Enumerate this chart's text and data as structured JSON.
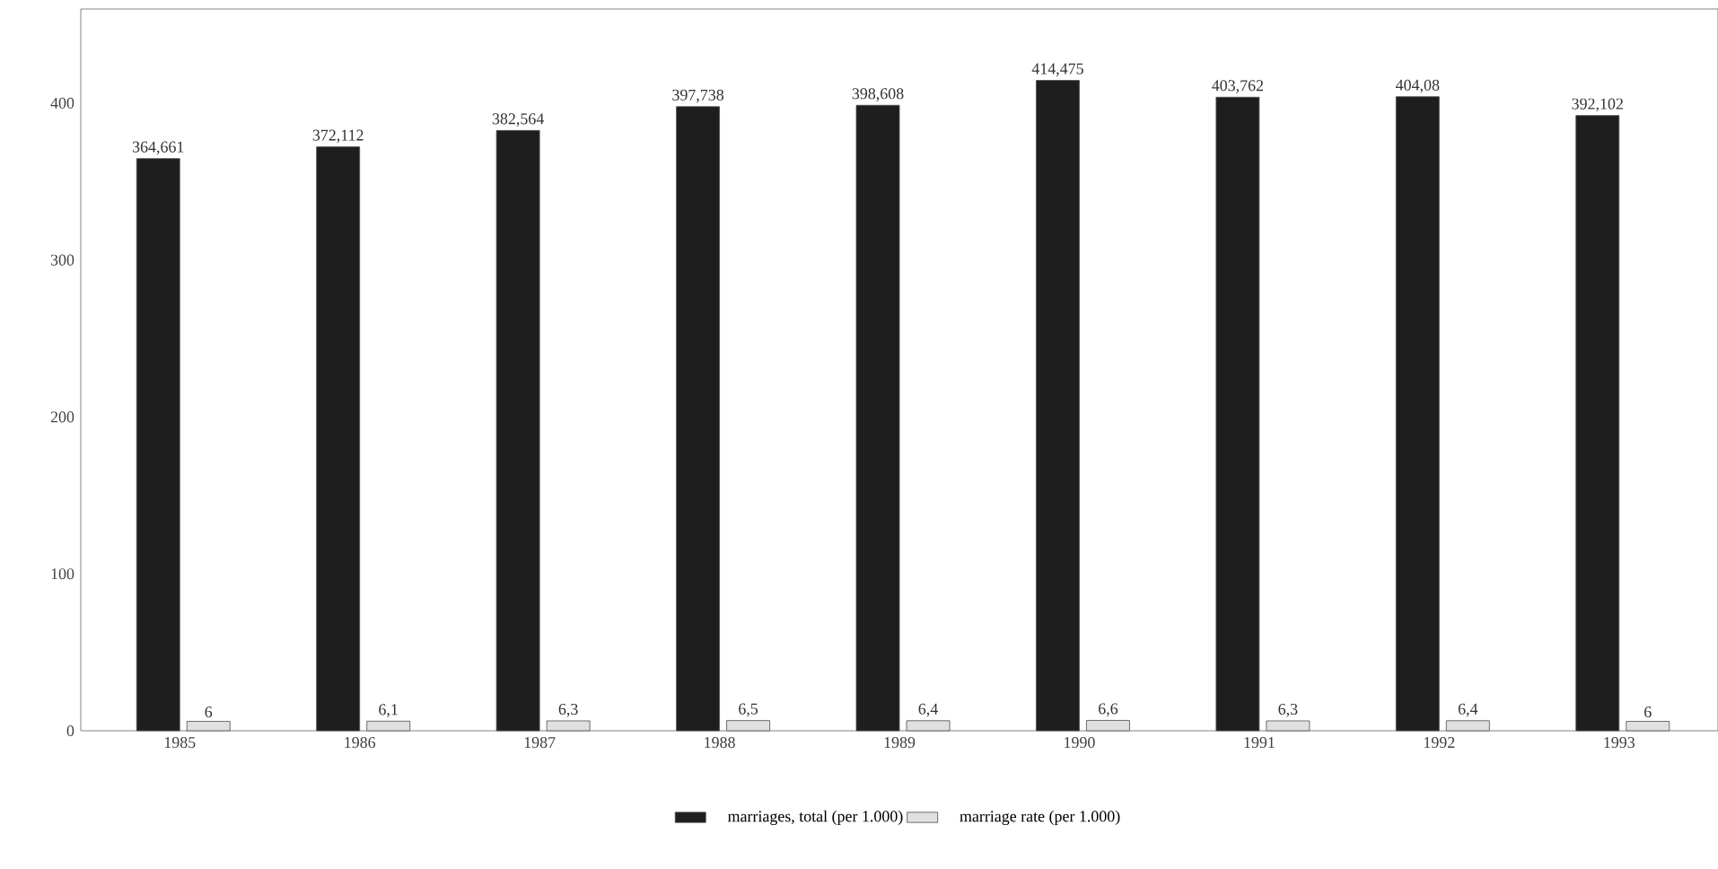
{
  "chart_data": {
    "type": "bar",
    "categories": [
      "1985",
      "1986",
      "1987",
      "1988",
      "1989",
      "1990",
      "1991",
      "1992",
      "1993"
    ],
    "series": [
      {
        "name": "marriages, total (per 1.000)",
        "color": "#1e1e1e",
        "values": [
          364.661,
          372.112,
          382.564,
          397.738,
          398.608,
          414.475,
          403.762,
          404.08,
          392.102
        ],
        "value_labels": [
          "364,661",
          "372,112",
          "382,564",
          "397,738",
          "398,608",
          "414,475",
          "403,762",
          "404,08",
          "392,102"
        ]
      },
      {
        "name": "marriage rate (per 1.000)",
        "color": "#e0e0e0",
        "values": [
          6,
          6.1,
          6.3,
          6.5,
          6.4,
          6.6,
          6.3,
          6.4,
          6
        ],
        "value_labels": [
          "6",
          "6,1",
          "6,3",
          "6,5",
          "6,4",
          "6,6",
          "6,3",
          "6,4",
          "6"
        ]
      }
    ],
    "ylim": [
      0,
      460
    ],
    "yticks": [
      0,
      100,
      200,
      300,
      400
    ],
    "legend": "bottom"
  }
}
